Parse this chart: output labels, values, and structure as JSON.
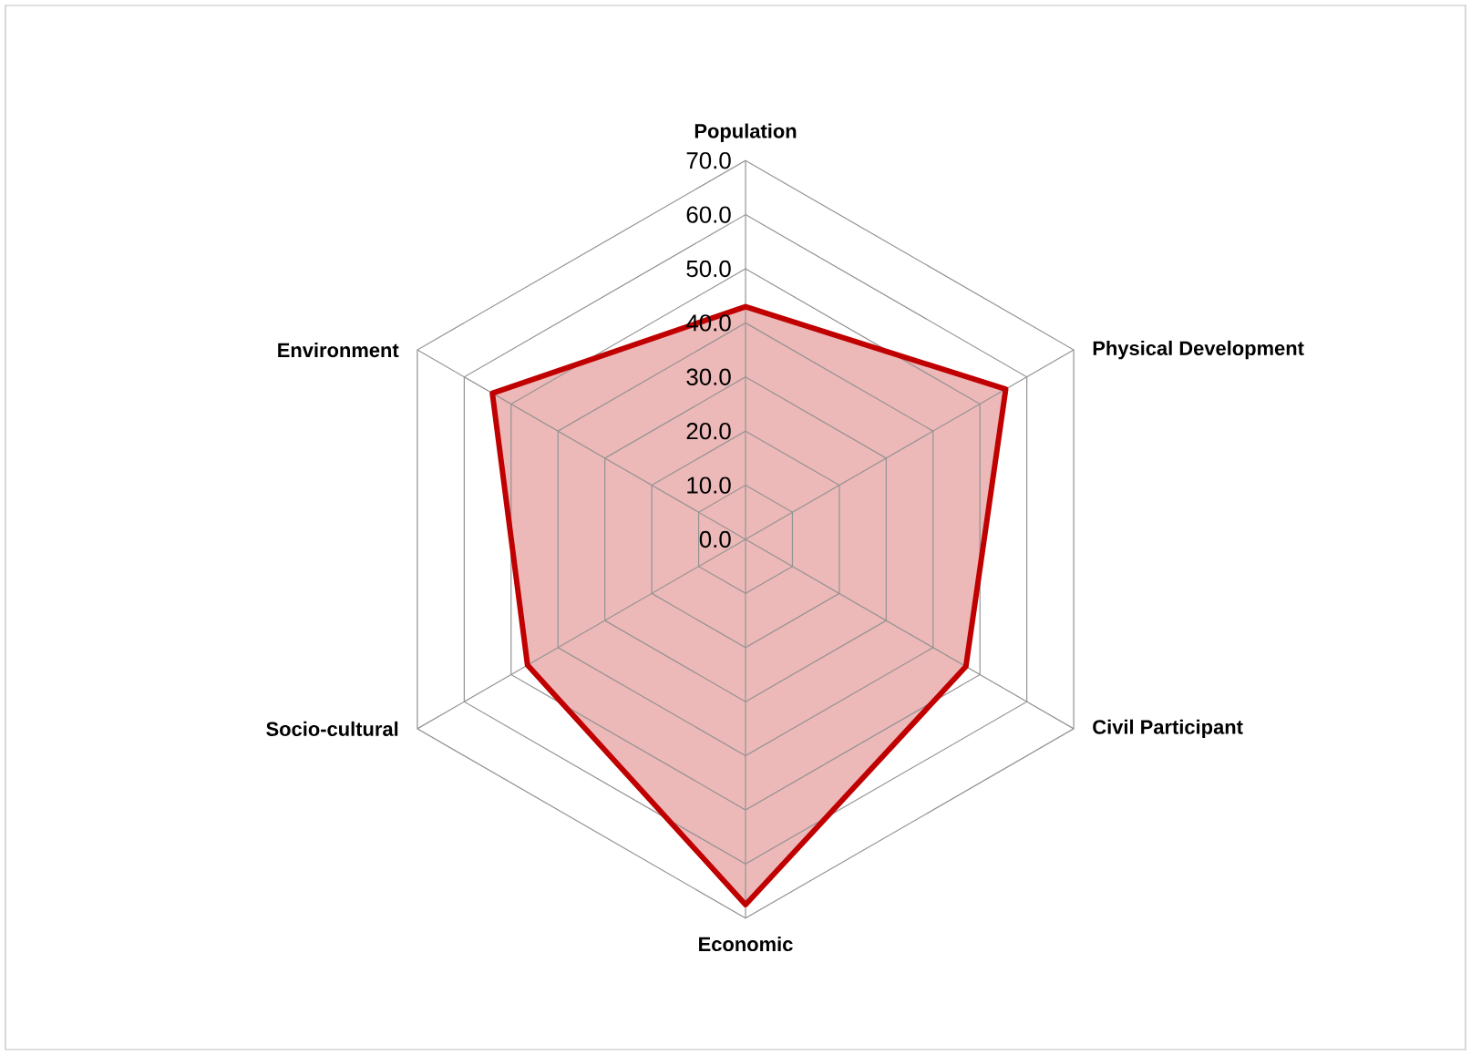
{
  "chart_data": {
    "type": "radar",
    "categories": [
      "Population",
      "Physical Development",
      "Civil Participant",
      "Economic",
      "Socio-cultural",
      "Environment"
    ],
    "series": [
      {
        "color": "#c00000",
        "values": [
          43,
          55.5,
          47,
          67.5,
          46.5,
          54
        ]
      }
    ],
    "ylim": [
      0,
      70
    ],
    "yticks": [
      {
        "value": 0,
        "label": "0.0"
      },
      {
        "value": 10,
        "label": "10.0"
      },
      {
        "value": 20,
        "label": "20.0"
      },
      {
        "value": 30,
        "label": "30.0"
      },
      {
        "value": 40,
        "label": "40.0"
      },
      {
        "value": 50,
        "label": "50.0"
      },
      {
        "value": 60,
        "label": "60.0"
      },
      {
        "value": 70,
        "label": "70.0"
      }
    ],
    "grid": true
  }
}
